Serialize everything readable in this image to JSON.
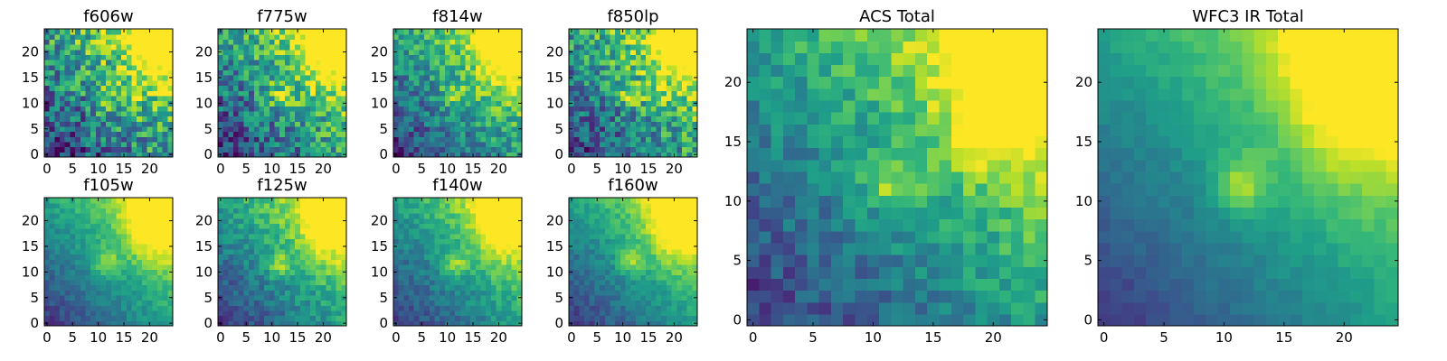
{
  "chart_data": [
    {
      "type": "heatmap",
      "title": "f606w",
      "xticks": [
        "0",
        "5",
        "10",
        "15",
        "20"
      ],
      "yticks": [
        "0",
        "5",
        "10",
        "15",
        "20"
      ],
      "xlim": [
        0,
        25
      ],
      "ylim": [
        0,
        25
      ],
      "colormap": "viridis",
      "noise": 0.3,
      "centroid": {
        "x": 11.5,
        "y": 11.5
      }
    },
    {
      "type": "heatmap",
      "title": "f775w",
      "xticks": [
        "0",
        "5",
        "10",
        "15",
        "20"
      ],
      "yticks": [
        "0",
        "5",
        "10",
        "15",
        "20"
      ],
      "xlim": [
        0,
        25
      ],
      "ylim": [
        0,
        25
      ],
      "colormap": "viridis",
      "noise": 0.26,
      "centroid": {
        "x": 11.5,
        "y": 11.5
      }
    },
    {
      "type": "heatmap",
      "title": "f814w",
      "xticks": [
        "0",
        "5",
        "10",
        "15",
        "20"
      ],
      "yticks": [
        "0",
        "5",
        "10",
        "15",
        "20"
      ],
      "xlim": [
        0,
        25
      ],
      "ylim": [
        0,
        25
      ],
      "colormap": "viridis",
      "noise": 0.2,
      "centroid": {
        "x": 11.5,
        "y": 11.5
      }
    },
    {
      "type": "heatmap",
      "title": "f850lp",
      "xticks": [
        "0",
        "5",
        "10",
        "15",
        "20"
      ],
      "yticks": [
        "0",
        "5",
        "10",
        "15",
        "20"
      ],
      "xlim": [
        0,
        25
      ],
      "ylim": [
        0,
        25
      ],
      "colormap": "viridis",
      "noise": 0.26,
      "centroid": {
        "x": 11.5,
        "y": 11.5
      }
    },
    {
      "type": "heatmap",
      "title": "f105w",
      "xticks": [
        "0",
        "5",
        "10",
        "15",
        "20"
      ],
      "yticks": [
        "0",
        "5",
        "10",
        "15",
        "20"
      ],
      "xlim": [
        0,
        25
      ],
      "ylim": [
        0,
        25
      ],
      "colormap": "viridis",
      "noise": 0.08,
      "centroid": {
        "x": 11.5,
        "y": 12
      }
    },
    {
      "type": "heatmap",
      "title": "f125w",
      "xticks": [
        "0",
        "5",
        "10",
        "15",
        "20"
      ],
      "yticks": [
        "0",
        "5",
        "10",
        "15",
        "20"
      ],
      "xlim": [
        0,
        25
      ],
      "ylim": [
        0,
        25
      ],
      "colormap": "viridis",
      "noise": 0.12,
      "centroid": {
        "x": 11.5,
        "y": 11.5
      }
    },
    {
      "type": "heatmap",
      "title": "f140w",
      "xticks": [
        "0",
        "5",
        "10",
        "15",
        "20"
      ],
      "yticks": [
        "0",
        "5",
        "10",
        "15",
        "20"
      ],
      "xlim": [
        0,
        25
      ],
      "ylim": [
        0,
        25
      ],
      "colormap": "viridis",
      "noise": 0.1,
      "centroid": {
        "x": 11.5,
        "y": 11.5
      }
    },
    {
      "type": "heatmap",
      "title": "f160w",
      "xticks": [
        "0",
        "5",
        "10",
        "15",
        "20"
      ],
      "yticks": [
        "0",
        "5",
        "10",
        "15",
        "20"
      ],
      "xlim": [
        0,
        25
      ],
      "ylim": [
        0,
        25
      ],
      "colormap": "viridis",
      "noise": 0.08,
      "centroid": {
        "x": 11.5,
        "y": 12
      }
    },
    {
      "type": "heatmap",
      "title": "ACS Total",
      "xticks": [
        "0",
        "5",
        "10",
        "15",
        "20"
      ],
      "yticks": [
        "0",
        "5",
        "10",
        "15",
        "20"
      ],
      "xlim": [
        0,
        25
      ],
      "ylim": [
        0,
        25
      ],
      "colormap": "viridis",
      "noise": 0.13,
      "centroid": {
        "x": 11.5,
        "y": 11.5
      }
    },
    {
      "type": "heatmap",
      "title": "WFC3 IR Total",
      "xticks": [
        "0",
        "5",
        "10",
        "15",
        "20"
      ],
      "yticks": [
        "0",
        "5",
        "10",
        "15",
        "20"
      ],
      "xlim": [
        0,
        25
      ],
      "ylim": [
        0,
        25
      ],
      "colormap": "viridis",
      "noise": 0.04,
      "centroid": {
        "x": 11.5,
        "y": 11.5
      }
    }
  ]
}
